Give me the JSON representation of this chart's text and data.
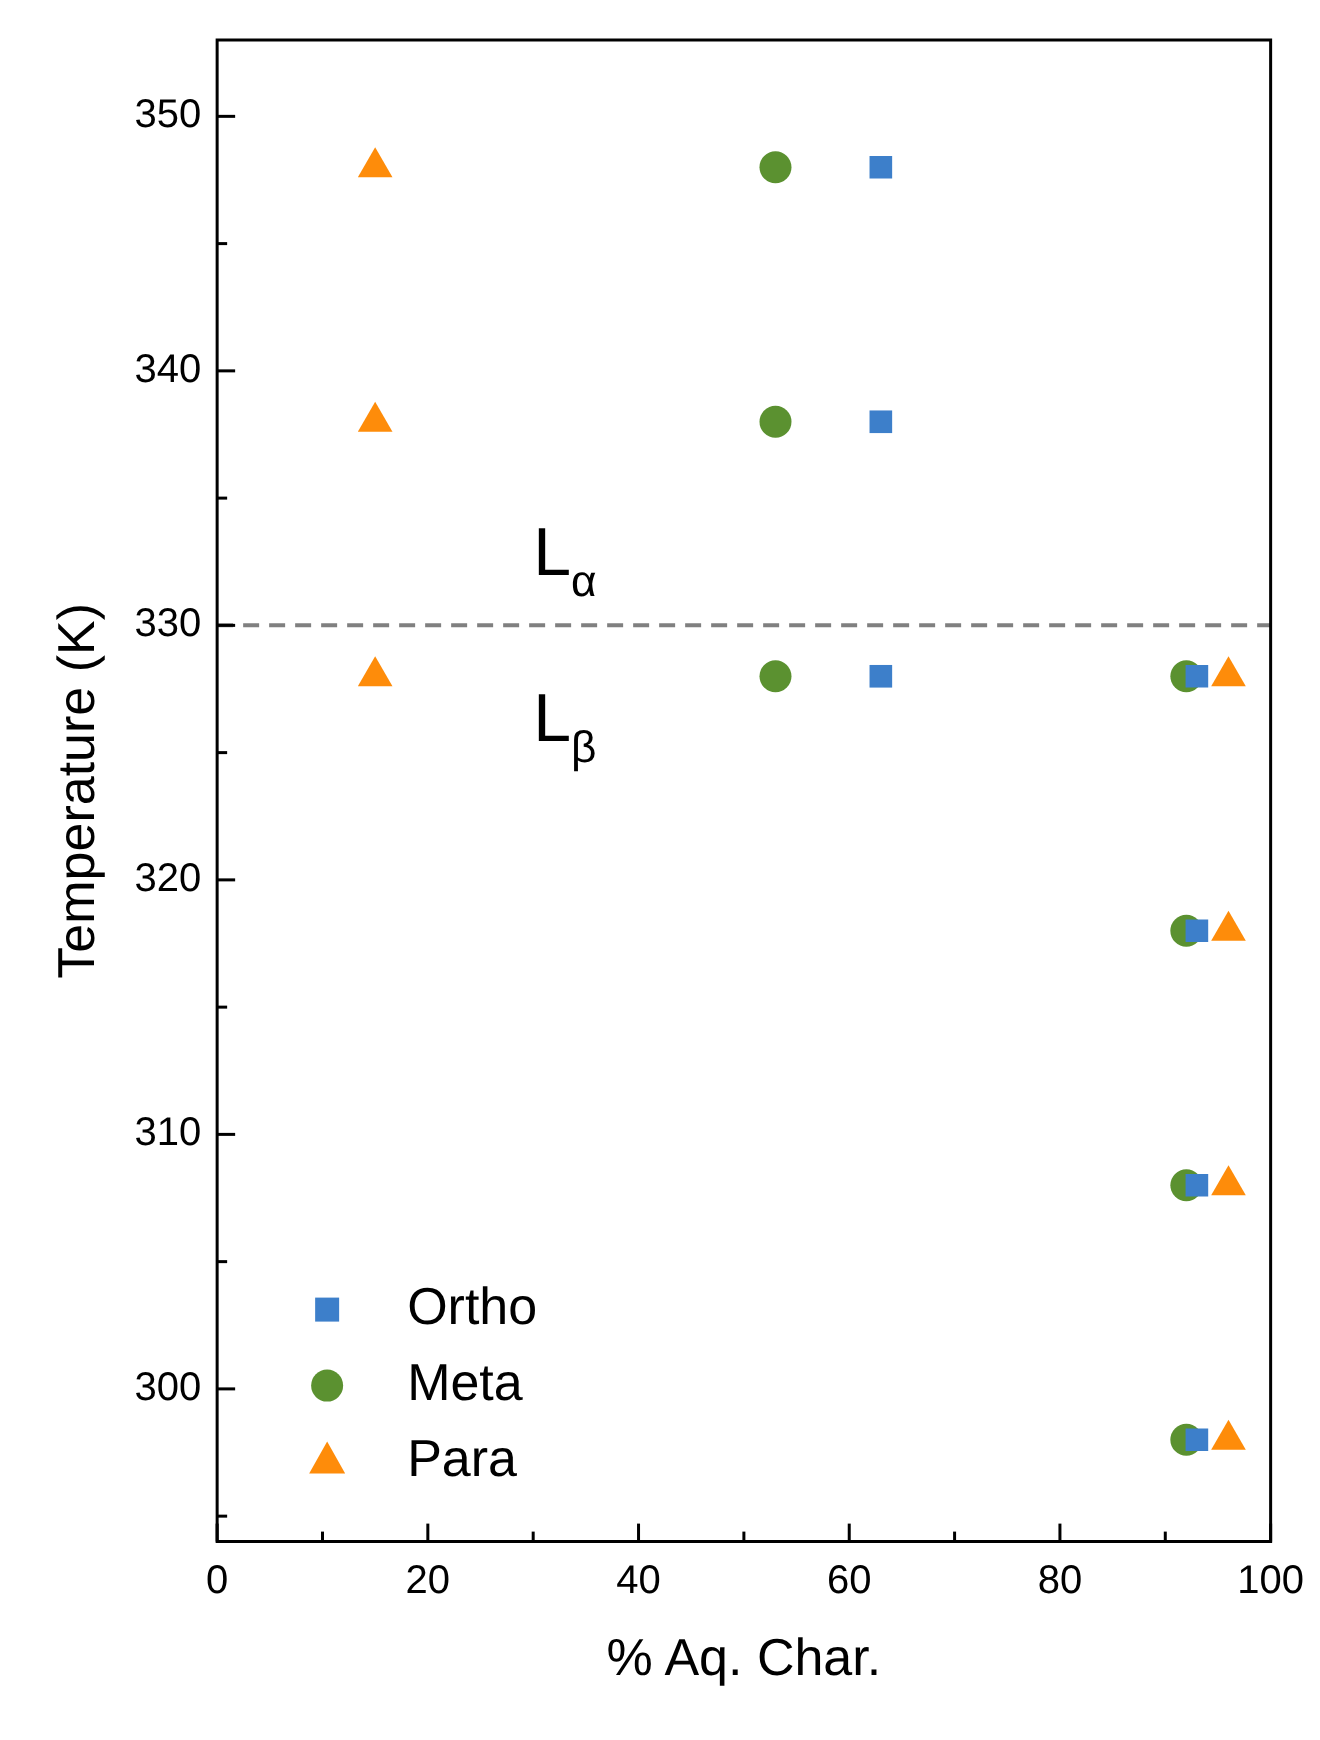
{
  "chart_data": {
    "type": "scatter",
    "xlabel": "% Aq. Char.",
    "ylabel": "Temperature (K)",
    "xlim": [
      0,
      100
    ],
    "ylim": [
      294,
      353
    ],
    "xticks": [
      0,
      {
        "value": 10,
        "label": null
      },
      20,
      {
        "value": 30,
        "label": null
      },
      40,
      {
        "value": 50,
        "label": null
      },
      60,
      {
        "value": 70,
        "label": null
      },
      80,
      {
        "value": 90,
        "label": null
      },
      100
    ],
    "yticks": [
      {
        "value": 295,
        "label": null
      },
      300,
      {
        "value": 305,
        "label": null
      },
      310,
      {
        "value": 315,
        "label": null
      },
      320,
      {
        "value": 325,
        "label": null
      },
      330,
      {
        "value": 335,
        "label": null
      },
      340,
      {
        "value": 345,
        "label": null
      },
      350
    ],
    "legend": "bottom left",
    "grid": false,
    "series": [
      {
        "name": "Ortho",
        "color": "#3d7fca",
        "marker": "square",
        "x": [
          63,
          63,
          63,
          93,
          93,
          93,
          93
        ],
        "values": [
          348,
          338,
          328,
          328,
          318,
          308,
          298
        ]
      },
      {
        "name": "Meta",
        "color": "#5b9130",
        "marker": "circle",
        "x": [
          53,
          53,
          53,
          92,
          92,
          92,
          92
        ],
        "values": [
          348,
          338,
          328,
          328,
          318,
          308,
          298
        ]
      },
      {
        "name": "Para",
        "color": "#fe8c0a",
        "marker": "triangle",
        "x": [
          15,
          15,
          15,
          96,
          96,
          96,
          96
        ],
        "values": [
          348,
          338,
          328,
          328,
          318,
          308,
          298
        ]
      }
    ],
    "ref_lines": [
      {
        "axis": "y",
        "value": 330,
        "color": "#808080",
        "line_style": "dashed"
      }
    ],
    "annotations": [
      "L$_{α}$",
      "L$_{β}$"
    ]
  }
}
